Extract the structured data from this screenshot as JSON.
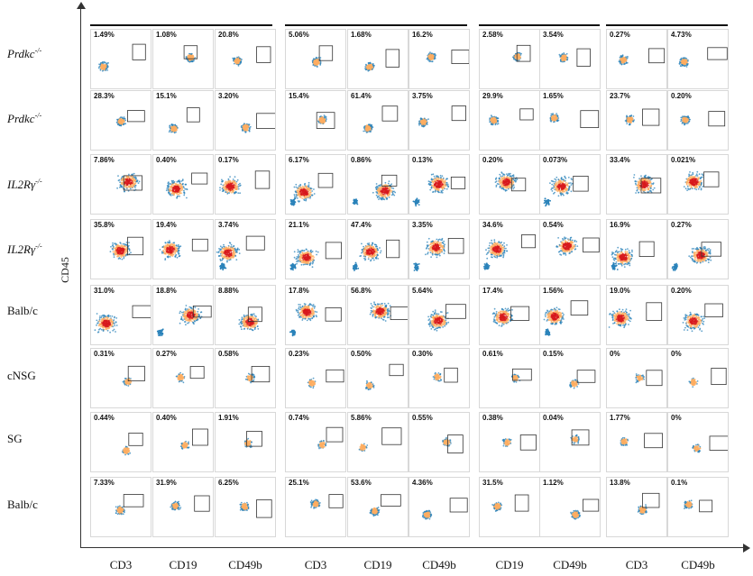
{
  "rows": [
    {
      "label": "Prdkc",
      "sup": "-/-",
      "italic": true,
      "values": [
        "1.49%",
        "1.08%",
        "20.8%",
        "5.06%",
        "1.68%",
        "16.2%",
        "2.58%",
        "3.54%",
        "0.27%",
        "4.73%"
      ]
    },
    {
      "label": "Prdkc",
      "sup": "-/-",
      "italic": true,
      "values": [
        "28.3%",
        "15.1%",
        "3.20%",
        "15.4%",
        "61.4%",
        "3.75%",
        "29.9%",
        "1.65%",
        "23.7%",
        "0.20%"
      ]
    },
    {
      "label": "IL2Rγ",
      "sup": "-/-",
      "italic": true,
      "values": [
        "7.86%",
        "0.40%",
        "0.17%",
        "6.17%",
        "0.86%",
        "0.13%",
        "0.20%",
        "0.073%",
        "33.4%",
        "0.021%"
      ]
    },
    {
      "label": "IL2Rγ",
      "sup": "-/-",
      "italic": true,
      "values": [
        "35.8%",
        "19.4%",
        "3.74%",
        "21.1%",
        "47.4%",
        "3.35%",
        "34.6%",
        "0.54%",
        "16.9%",
        "0.27%"
      ]
    },
    {
      "label": "Balb/c",
      "sup": "",
      "italic": false,
      "values": [
        "31.0%",
        "18.8%",
        "8.88%",
        "17.8%",
        "56.8%",
        "5.64%",
        "17.4%",
        "1.56%",
        "19.0%",
        "0.20%"
      ]
    },
    {
      "label": "cNSG",
      "sup": "",
      "italic": false,
      "values": [
        "0.31%",
        "0.27%",
        "0.58%",
        "0.23%",
        "0.50%",
        "0.30%",
        "0.61%",
        "0.15%",
        "0%",
        "0%"
      ]
    },
    {
      "label": "SG",
      "sup": "",
      "italic": false,
      "values": [
        "0.44%",
        "0.40%",
        "1.91%",
        "0.74%",
        "5.86%",
        "0.55%",
        "0.38%",
        "0.04%",
        "1.77%",
        "0%"
      ]
    },
    {
      "label": "Balb/c",
      "sup": "",
      "italic": false,
      "values": [
        "7.33%",
        "31.9%",
        "6.25%",
        "25.1%",
        "53.6%",
        "4.36%",
        "31.5%",
        "1.12%",
        "13.8%",
        "0.1%"
      ]
    }
  ],
  "columns": [
    "CD3",
    "CD19",
    "CD49b",
    "CD3",
    "CD19",
    "CD49b",
    "CD19",
    "CD49b",
    "CD3",
    "CD49b"
  ],
  "y_axis_label": "CD45",
  "colors": {
    "high": "#d7191c",
    "mid": "#fdae61",
    "low": "#2b83ba",
    "bg": "#ffffff",
    "gate": "#333333"
  }
}
